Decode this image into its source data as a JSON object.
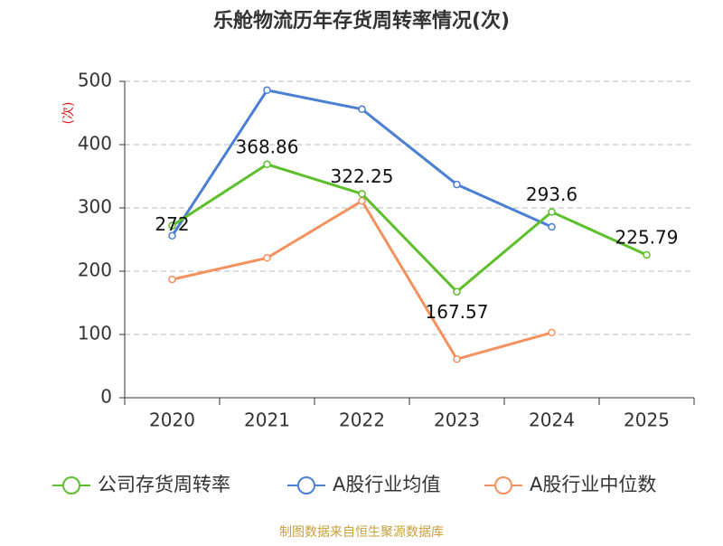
{
  "chart_data": {
    "type": "line",
    "title": "乐舱物流历年存货周转率情况(次)",
    "y_label": "(次)",
    "categories": [
      "2020",
      "2021",
      "2022",
      "2023",
      "2024",
      "2025"
    ],
    "series": [
      {
        "name": "公司存货周转率",
        "color": "#5dbf2b",
        "values": [
          272,
          368.86,
          322.25,
          167.57,
          293.6,
          225.79
        ],
        "labels": true
      },
      {
        "name": "A股行业均值",
        "color": "#4a7fd4",
        "values": [
          256,
          486,
          456,
          337,
          270,
          null
        ]
      },
      {
        "name": "A股行业中位数",
        "color": "#f4915e",
        "values": [
          187,
          221,
          311,
          61,
          103,
          null
        ]
      }
    ],
    "ylim": [
      0,
      500
    ],
    "yticks": [
      0,
      100,
      200,
      300,
      400,
      500
    ],
    "grid": true,
    "source": "制图数据来自恒生聚源数据库"
  }
}
